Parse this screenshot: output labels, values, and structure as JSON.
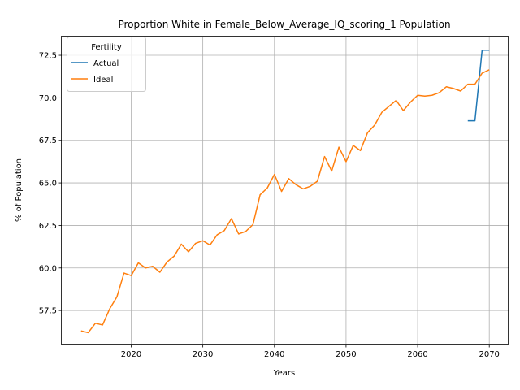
{
  "chart_data": {
    "type": "line",
    "title": "Proportion White in Female_Below_Average_IQ_scoring_1 Population",
    "xlabel": "Years",
    "ylabel": "% of Population",
    "xlim": [
      2010.3,
      2072.7
    ],
    "ylim": [
      55.5,
      73.6
    ],
    "xticks": [
      2020,
      2030,
      2040,
      2050,
      2060,
      2070
    ],
    "yticks": [
      57.5,
      60.0,
      62.5,
      65.0,
      67.5,
      70.0,
      72.5
    ],
    "grid": true,
    "legend": {
      "title": "Fertility",
      "position": "top-left"
    },
    "series": [
      {
        "name": "Actual",
        "color": "#1f77b4",
        "x": [
          2067,
          2068,
          2069,
          2070
        ],
        "y": [
          68.65,
          68.65,
          72.8,
          72.8
        ]
      },
      {
        "name": "Ideal",
        "color": "#ff7f0e",
        "x": [
          2013,
          2014,
          2015,
          2016,
          2017,
          2018,
          2019,
          2020,
          2021,
          2022,
          2023,
          2024,
          2025,
          2026,
          2027,
          2028,
          2029,
          2030,
          2031,
          2032,
          2033,
          2034,
          2035,
          2036,
          2037,
          2038,
          2039,
          2040,
          2041,
          2042,
          2043,
          2044,
          2045,
          2046,
          2047,
          2048,
          2049,
          2050,
          2051,
          2052,
          2053,
          2054,
          2055,
          2056,
          2057,
          2058,
          2059,
          2060,
          2061,
          2062,
          2063,
          2064,
          2065,
          2066,
          2067,
          2068,
          2069,
          2070
        ],
        "y": [
          56.3,
          56.2,
          56.75,
          56.65,
          57.6,
          58.3,
          59.7,
          59.55,
          60.3,
          60.0,
          60.1,
          59.75,
          60.35,
          60.7,
          61.4,
          60.95,
          61.45,
          61.6,
          61.35,
          61.95,
          62.2,
          62.9,
          62.0,
          62.15,
          62.55,
          64.3,
          64.7,
          65.5,
          64.5,
          65.25,
          64.9,
          64.65,
          64.8,
          65.1,
          66.55,
          65.7,
          67.1,
          66.25,
          67.2,
          66.9,
          67.95,
          68.4,
          69.15,
          69.5,
          69.85,
          69.25,
          69.75,
          70.15,
          70.1,
          70.15,
          70.3,
          70.65,
          70.55,
          70.4,
          70.8,
          70.8,
          71.45,
          71.65
        ]
      }
    ]
  }
}
